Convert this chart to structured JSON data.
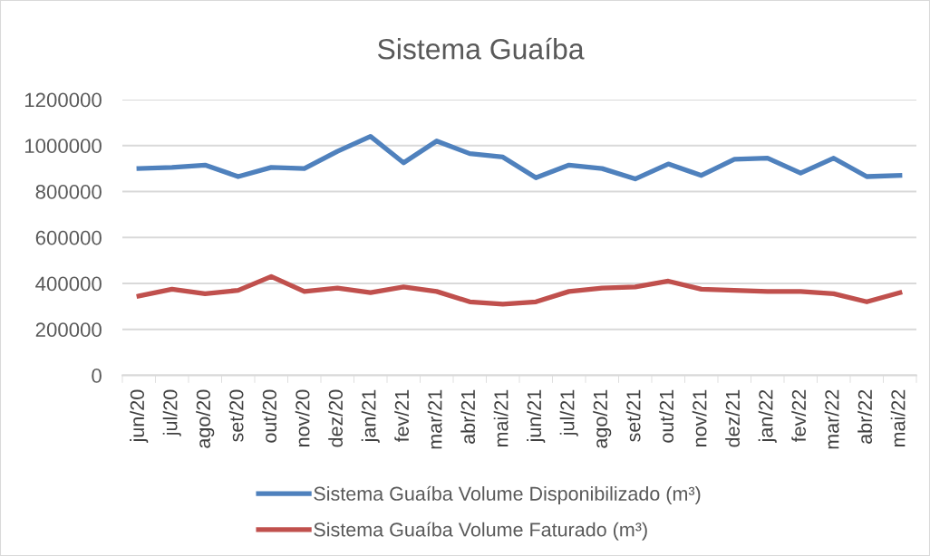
{
  "chart_data": {
    "type": "line",
    "title": "Sistema Guaíba",
    "categories": [
      "jun/20",
      "jul/20",
      "ago/20",
      "set/20",
      "out/20",
      "nov/20",
      "dez/20",
      "jan/21",
      "fev/21",
      "mar/21",
      "abr/21",
      "mai/21",
      "jun/21",
      "jul/21",
      "ago/21",
      "set/21",
      "out/21",
      "nov/21",
      "dez/21",
      "jan/22",
      "fev/22",
      "mar/22",
      "abr/22",
      "mai/22"
    ],
    "series": [
      {
        "name": "Sistema Guaíba Volume Disponibilizado (m³)",
        "color": "#4f81bd",
        "values": [
          900000,
          905000,
          915000,
          865000,
          905000,
          900000,
          975000,
          1040000,
          925000,
          1020000,
          965000,
          950000,
          860000,
          915000,
          900000,
          855000,
          920000,
          870000,
          940000,
          945000,
          880000,
          945000,
          865000,
          870000
        ]
      },
      {
        "name": "Sistema Guaíba Volume Faturado (m³)",
        "color": "#c0504d",
        "values": [
          345000,
          375000,
          355000,
          370000,
          430000,
          365000,
          380000,
          360000,
          385000,
          365000,
          320000,
          310000,
          320000,
          365000,
          380000,
          385000,
          410000,
          375000,
          370000,
          365000,
          365000,
          355000,
          320000,
          360000
        ]
      }
    ],
    "ylim": [
      0,
      1200000
    ],
    "yticks": [
      0,
      200000,
      400000,
      600000,
      800000,
      1000000,
      1200000
    ],
    "grid": "y",
    "legend": "bottom",
    "marker": "none",
    "line_style": "solid"
  }
}
